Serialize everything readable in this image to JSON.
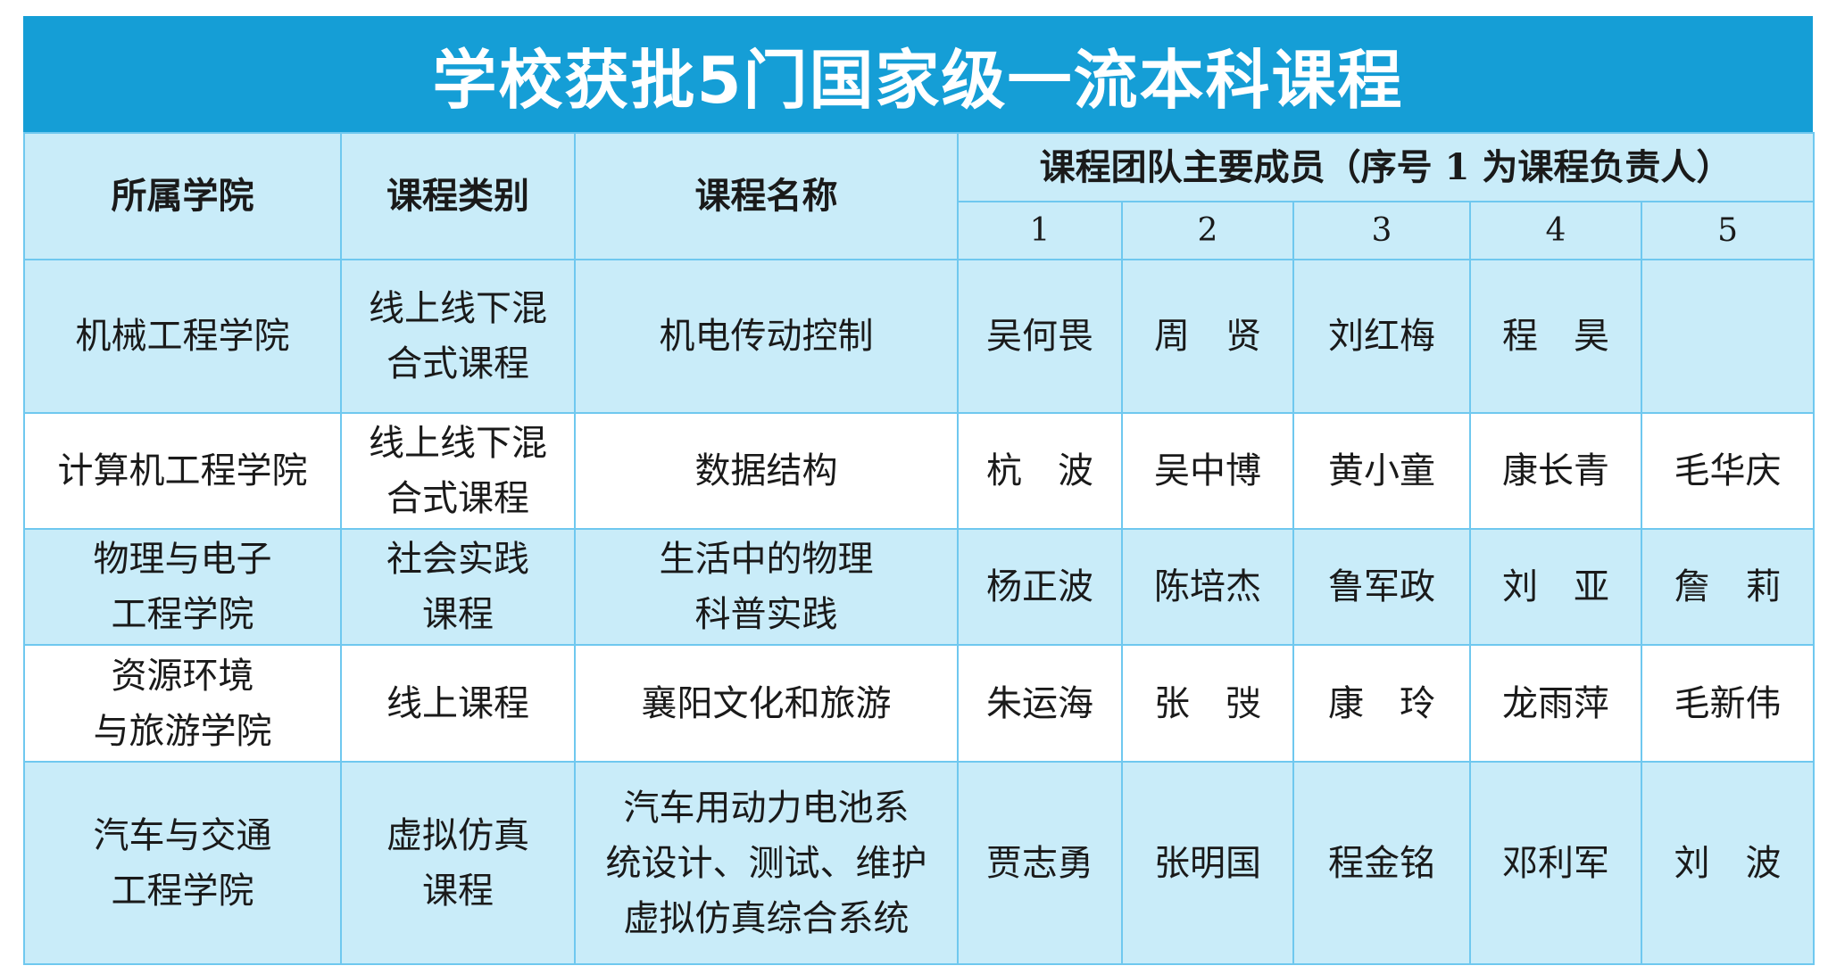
{
  "title": "学校获批5门国家级一流本科课程",
  "colors": {
    "title_bg": "#159ed6",
    "row_blue": "#c9ecf9",
    "row_white": "#ffffff",
    "border": "#6fc8ef"
  },
  "headers": {
    "college": "所属学院",
    "category": "课程类别",
    "course": "课程名称",
    "team": "课程团队主要成员（序号 1 为课程负责人）",
    "numbers": [
      "1",
      "2",
      "3",
      "4",
      "5"
    ]
  },
  "rows": [
    {
      "college": "机械工程学院",
      "category": "线上线下混\n合式课程",
      "course": "机电传动控制",
      "members": [
        "吴何畏",
        "周　贤",
        "刘红梅",
        "程　昊",
        ""
      ]
    },
    {
      "college": "计算机工程学院",
      "category": "线上线下混\n合式课程",
      "course": "数据结构",
      "members": [
        "杭　波",
        "吴中博",
        "黄小童",
        "康长青",
        "毛华庆"
      ]
    },
    {
      "college": "物理与电子\n工程学院",
      "category": "社会实践\n课程",
      "course": "生活中的物理\n科普实践",
      "members": [
        "杨正波",
        "陈培杰",
        "鲁军政",
        "刘　亚",
        "詹　莉"
      ]
    },
    {
      "college": "资源环境\n与旅游学院",
      "category": "线上课程",
      "course": "襄阳文化和旅游",
      "members": [
        "朱运海",
        "张　弢",
        "康　玲",
        "龙雨萍",
        "毛新伟"
      ]
    },
    {
      "college": "汽车与交通\n工程学院",
      "category": "虚拟仿真\n课程",
      "course": "汽车用动力电池系\n统设计、测试、维护\n虚拟仿真综合系统",
      "members": [
        "贾志勇",
        "张明国",
        "程金铭",
        "邓利军",
        "刘　波"
      ]
    }
  ]
}
